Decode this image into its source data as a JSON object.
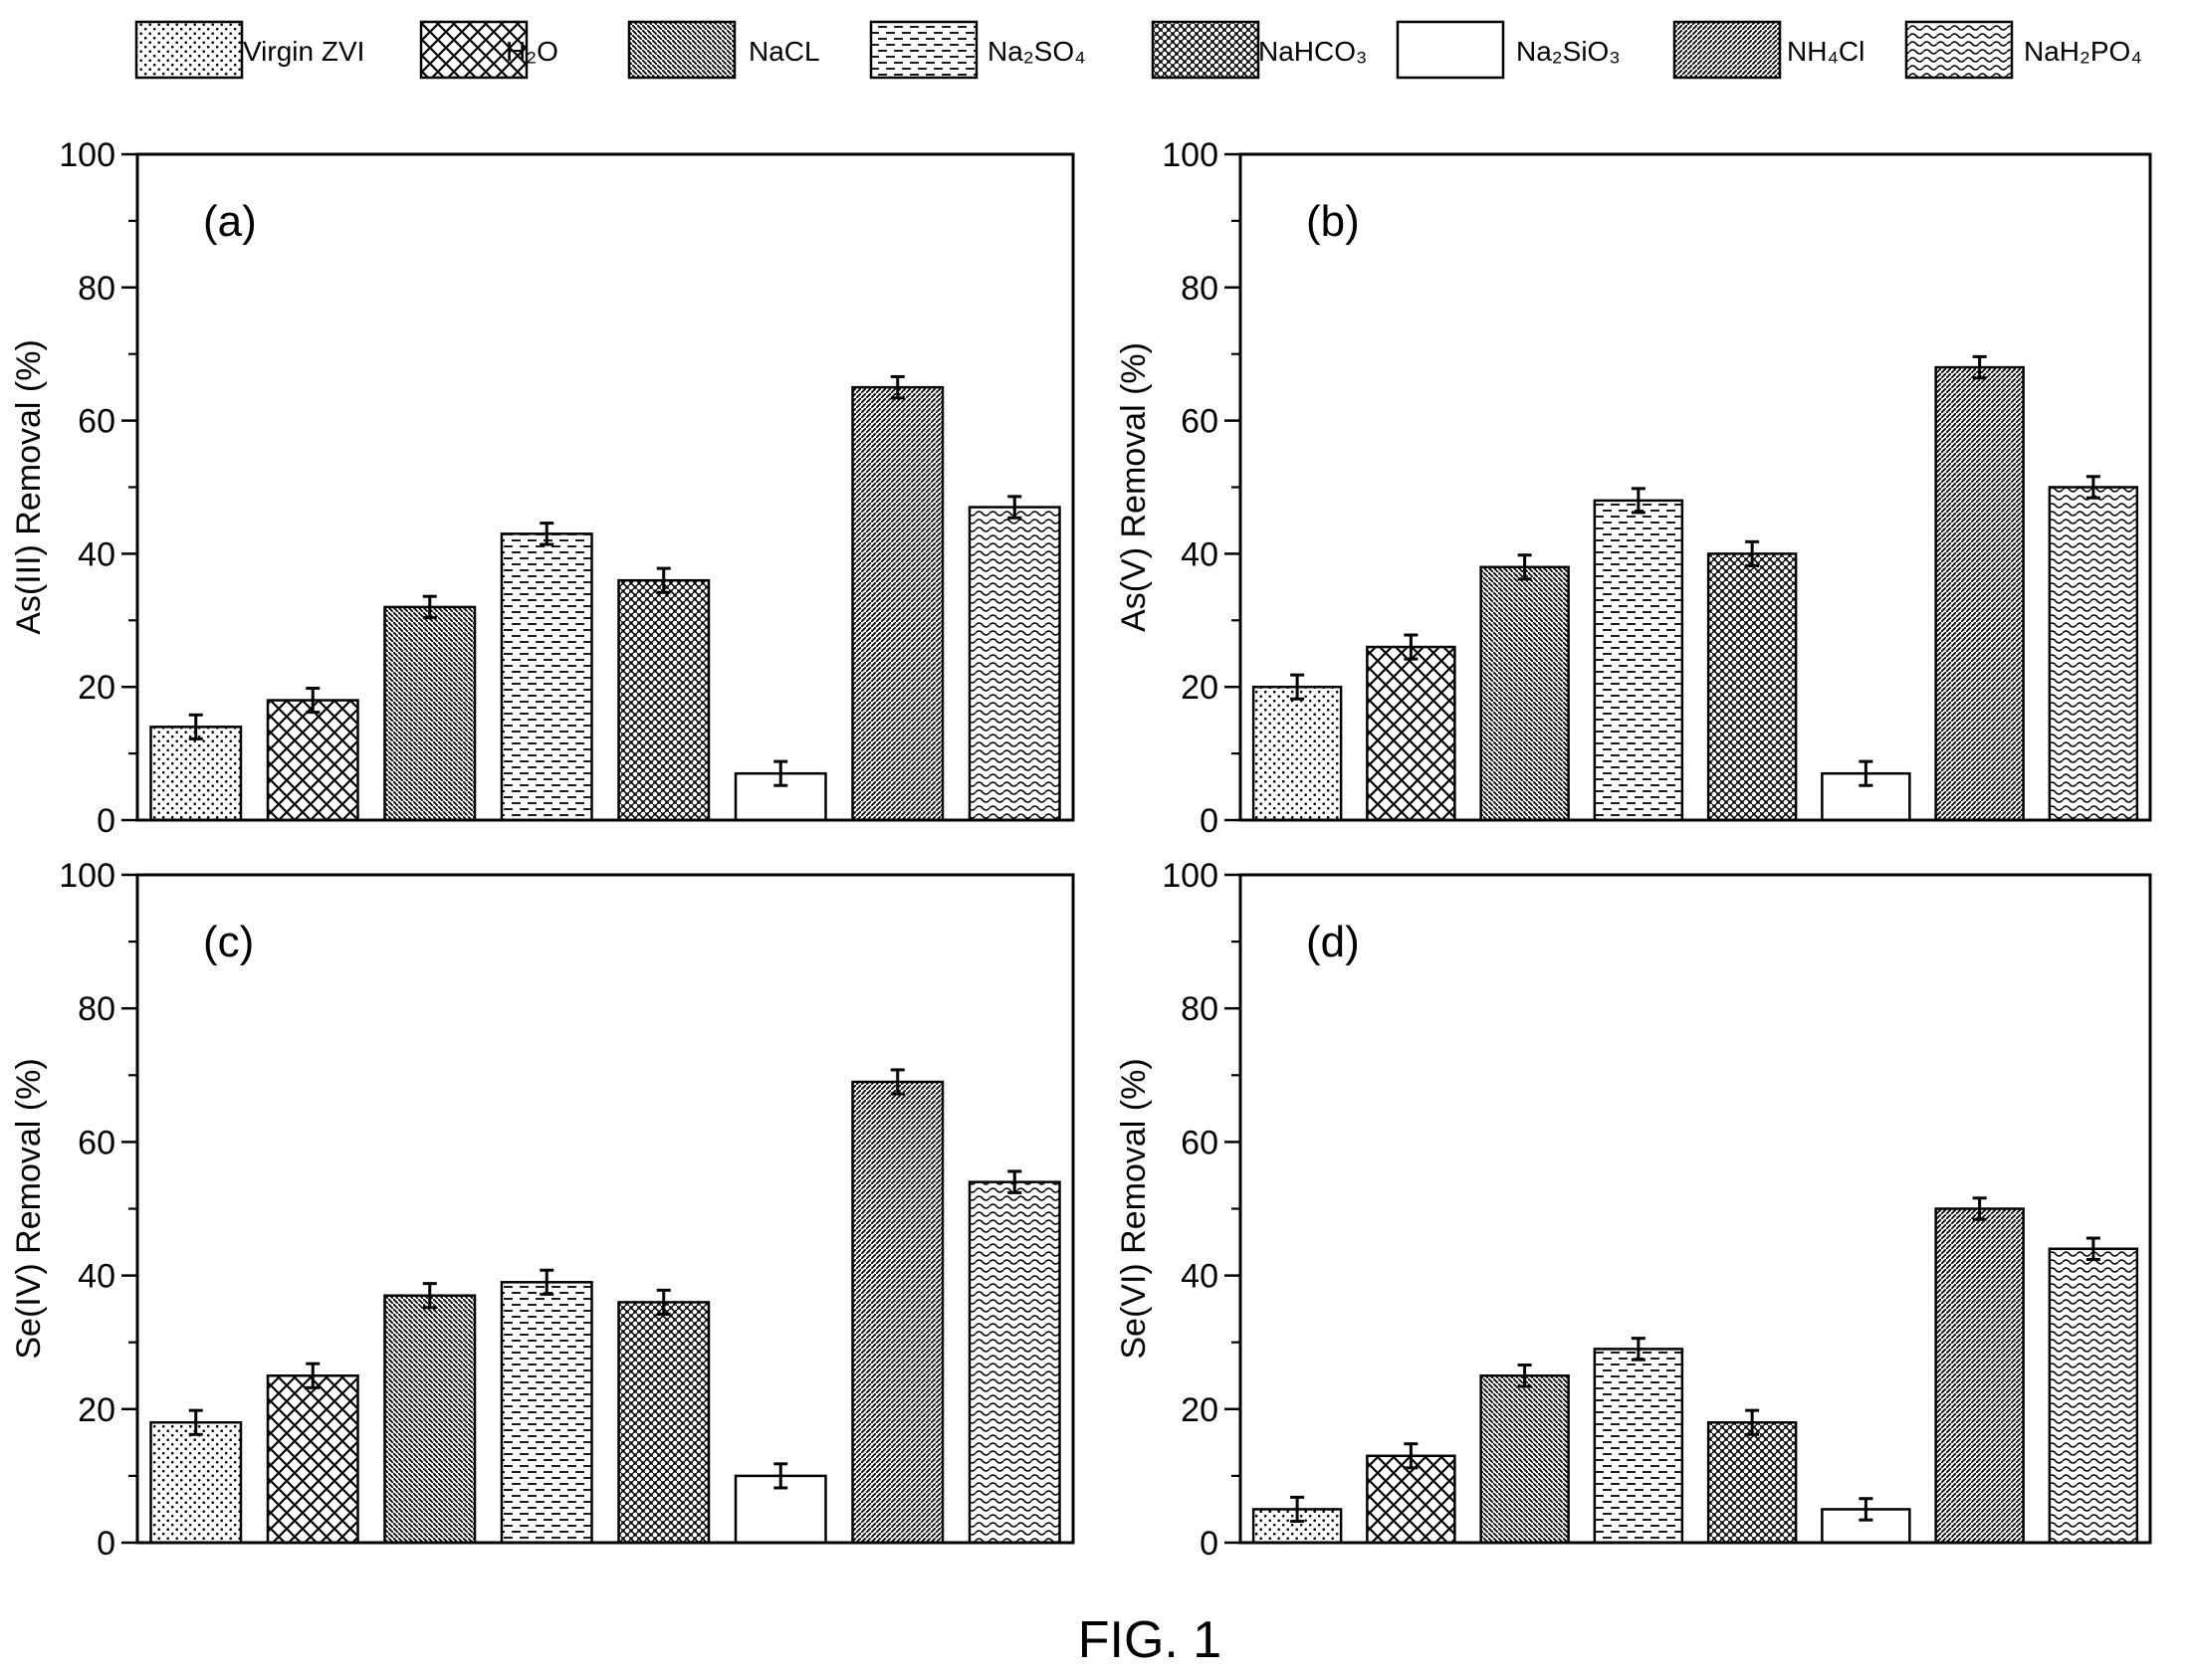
{
  "figure": {
    "caption": "FIG. 1"
  },
  "legend": {
    "position": "top",
    "items": [
      {
        "id": "virgin",
        "label": "Virgin ZVI",
        "pattern": "dots"
      },
      {
        "id": "h2o",
        "label": "H₂O",
        "pattern": "crosshatch"
      },
      {
        "id": "nacl",
        "label": "NaCL",
        "pattern": "diag-back-dense"
      },
      {
        "id": "na2so4",
        "label": "Na₂SO₄",
        "pattern": "dashes"
      },
      {
        "id": "nahco3",
        "label": "NaHCO₃",
        "pattern": "woven"
      },
      {
        "id": "na2sio3",
        "label": "Na₂SiO₃",
        "pattern": "none"
      },
      {
        "id": "nh4cl",
        "label": "NH₄Cl",
        "pattern": "diag-forward-dense"
      },
      {
        "id": "nah2po4",
        "label": "NaH₂PO₄",
        "pattern": "waves"
      }
    ]
  },
  "chart_data": [
    {
      "type": "bar",
      "panel_label": "(a)",
      "ylabel": "As(III) Removal (%)",
      "xlabel": "",
      "ylim": [
        0,
        100
      ],
      "yticks": [
        "0",
        "20",
        "40",
        "60",
        "80",
        "100"
      ],
      "categories": [
        "Virgin ZVI",
        "H₂O",
        "NaCL",
        "Na₂SO₄",
        "NaHCO₃",
        "Na₂SiO₃",
        "NH₄Cl",
        "NaH₂PO₄"
      ],
      "values": [
        14,
        18,
        32,
        43,
        36,
        7,
        65,
        47
      ],
      "errors": [
        1.8,
        1.8,
        1.6,
        1.6,
        1.8,
        1.8,
        1.6,
        1.6
      ]
    },
    {
      "type": "bar",
      "panel_label": "(b)",
      "ylabel": "As(V) Removal (%)",
      "xlabel": "",
      "ylim": [
        0,
        100
      ],
      "yticks": [
        "0",
        "20",
        "40",
        "60",
        "80",
        "100"
      ],
      "categories": [
        "Virgin ZVI",
        "H₂O",
        "NaCL",
        "Na₂SO₄",
        "NaHCO₃",
        "Na₂SiO₃",
        "NH₄Cl",
        "NaH₂PO₄"
      ],
      "values": [
        20,
        26,
        38,
        48,
        40,
        7,
        68,
        50
      ],
      "errors": [
        1.8,
        1.8,
        1.8,
        1.8,
        1.8,
        1.8,
        1.6,
        1.6
      ]
    },
    {
      "type": "bar",
      "panel_label": "(c)",
      "ylabel": "Se(IV) Removal (%)",
      "xlabel": "",
      "ylim": [
        0,
        100
      ],
      "yticks": [
        "0",
        "20",
        "40",
        "60",
        "80",
        "100"
      ],
      "categories": [
        "Virgin ZVI",
        "H₂O",
        "NaCL",
        "Na₂SO₄",
        "NaHCO₃",
        "Na₂SiO₃",
        "NH₄Cl",
        "NaH₂PO₄"
      ],
      "values": [
        18,
        25,
        37,
        39,
        36,
        10,
        69,
        54
      ],
      "errors": [
        1.8,
        1.8,
        1.8,
        1.8,
        1.8,
        1.8,
        1.8,
        1.6
      ]
    },
    {
      "type": "bar",
      "panel_label": "(d)",
      "ylabel": "Se(VI) Removal (%)",
      "xlabel": "",
      "ylim": [
        0,
        100
      ],
      "yticks": [
        "0",
        "20",
        "40",
        "60",
        "80",
        "100"
      ],
      "categories": [
        "Virgin ZVI",
        "H₂O",
        "NaCL",
        "Na₂SO₄",
        "NaHCO₃",
        "Na₂SiO₃",
        "NH₄Cl",
        "NaH₂PO₄"
      ],
      "values": [
        5,
        13,
        25,
        29,
        18,
        5,
        50,
        44
      ],
      "errors": [
        1.8,
        1.8,
        1.6,
        1.6,
        1.8,
        1.6,
        1.6,
        1.6
      ]
    }
  ]
}
